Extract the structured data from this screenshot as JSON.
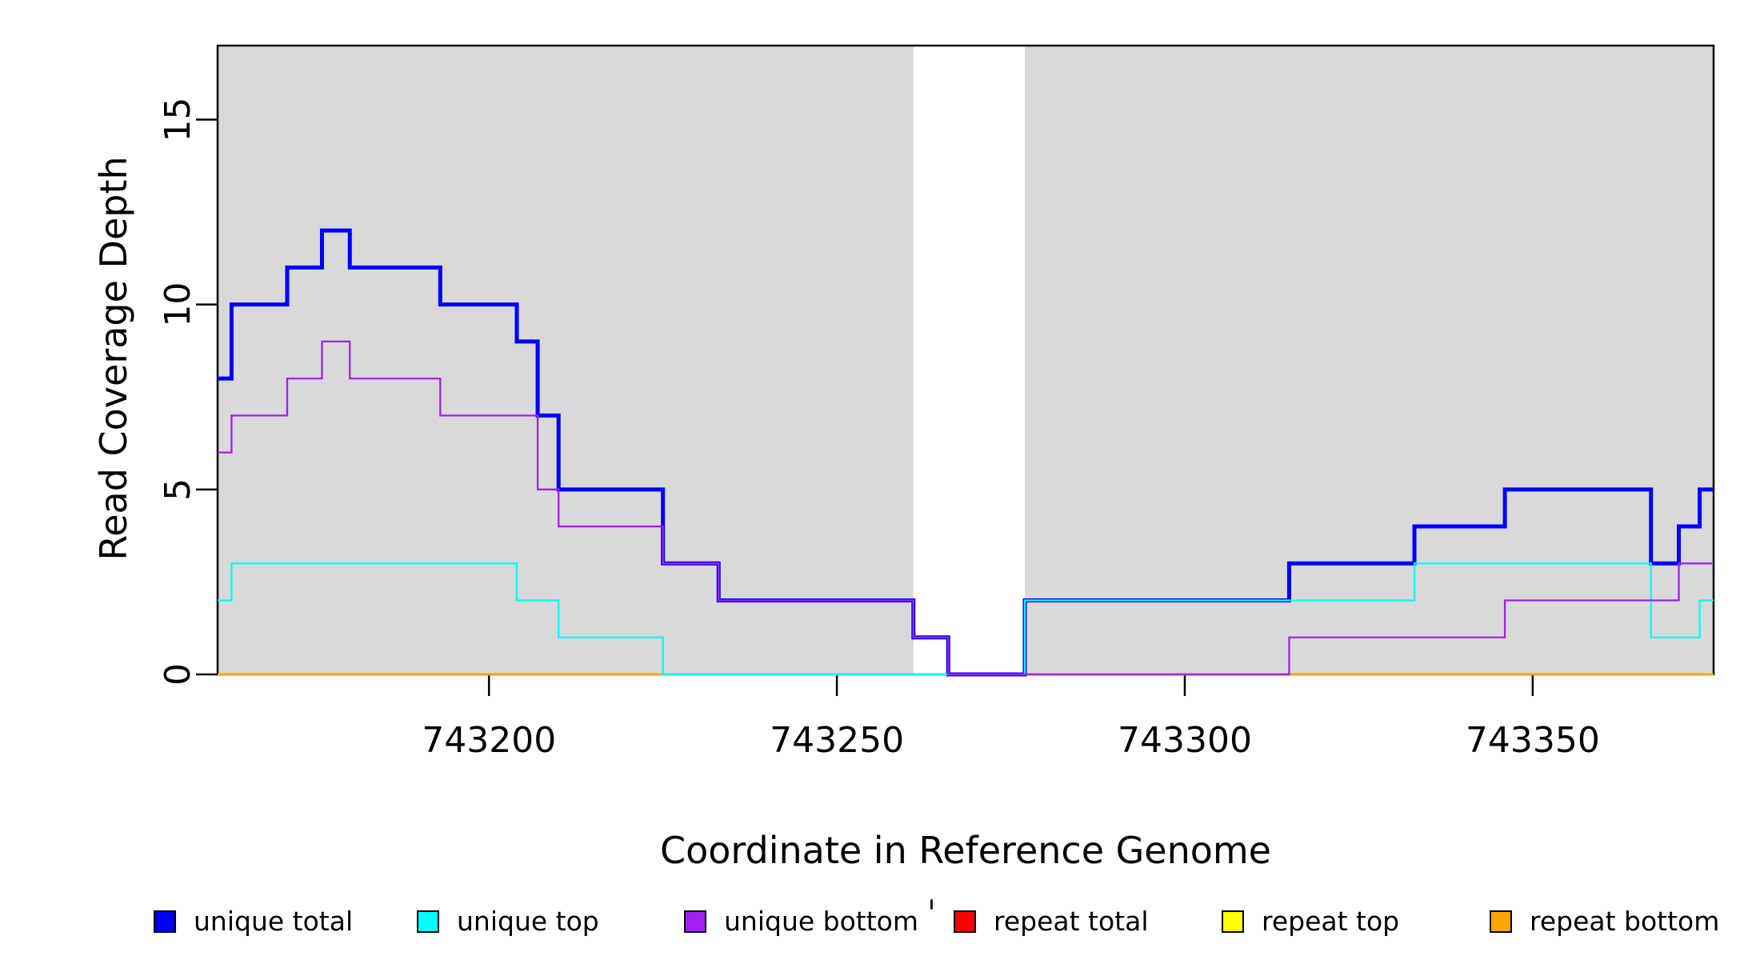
{
  "chart_data": {
    "type": "line",
    "subtype": "step-coverage-plot",
    "title": "",
    "xlabel": "Coordinate in Reference Genome",
    "ylabel": "Read Coverage Depth",
    "xlim": [
      743161,
      743376
    ],
    "ylim": [
      0,
      17
    ],
    "grid": false,
    "background_color": "#FFFFFF",
    "x_ticks": [
      {
        "value": 743200,
        "label": "743200"
      },
      {
        "value": 743250,
        "label": "743250"
      },
      {
        "value": 743300,
        "label": "743300"
      },
      {
        "value": 743350,
        "label": "743350"
      }
    ],
    "y_ticks": [
      {
        "value": 0,
        "label": "0"
      },
      {
        "value": 5,
        "label": "5"
      },
      {
        "value": 10,
        "label": "10"
      },
      {
        "value": 15,
        "label": "15"
      }
    ],
    "shaded_regions": {
      "color": "#D9D9D9",
      "ranges": [
        [
          743161,
          743261
        ],
        [
          743277,
          743376
        ]
      ]
    },
    "x_end": 743376,
    "series": [
      {
        "name": "repeat total",
        "color": "#FF0000",
        "line_width": 2.3,
        "steps": [
          [
            743161,
            0
          ]
        ]
      },
      {
        "name": "repeat top",
        "color": "#FFFF00",
        "line_width": 2.3,
        "steps": [
          [
            743161,
            0
          ]
        ]
      },
      {
        "name": "repeat bottom",
        "color": "#FFA500",
        "line_width": 2.8,
        "steps": [
          [
            743161,
            0
          ]
        ]
      },
      {
        "name": "unique total",
        "color": "#0000FF",
        "line_width": 5,
        "steps": [
          [
            743161,
            8
          ],
          [
            743163,
            10
          ],
          [
            743171,
            11
          ],
          [
            743176,
            12
          ],
          [
            743180,
            11
          ],
          [
            743193,
            10
          ],
          [
            743204,
            9
          ],
          [
            743207,
            7
          ],
          [
            743210,
            5
          ],
          [
            743225,
            3
          ],
          [
            743233,
            2
          ],
          [
            743261,
            1
          ],
          [
            743266,
            0
          ],
          [
            743277,
            2
          ],
          [
            743315,
            3
          ],
          [
            743333,
            4
          ],
          [
            743346,
            5
          ],
          [
            743367,
            3
          ],
          [
            743371,
            4
          ],
          [
            743374,
            5
          ]
        ]
      },
      {
        "name": "unique top",
        "color": "#00FFFF",
        "line_width": 2.3,
        "steps": [
          [
            743161,
            2
          ],
          [
            743163,
            3
          ],
          [
            743204,
            2
          ],
          [
            743210,
            1
          ],
          [
            743225,
            0
          ],
          [
            743277,
            2
          ],
          [
            743333,
            3
          ],
          [
            743367,
            1
          ],
          [
            743374,
            2
          ]
        ]
      },
      {
        "name": "unique bottom",
        "color": "#A020F0",
        "line_width": 2.3,
        "steps": [
          [
            743161,
            6
          ],
          [
            743163,
            7
          ],
          [
            743171,
            8
          ],
          [
            743176,
            9
          ],
          [
            743180,
            8
          ],
          [
            743193,
            7
          ],
          [
            743207,
            5
          ],
          [
            743210,
            4
          ],
          [
            743225,
            3
          ],
          [
            743233,
            2
          ],
          [
            743261,
            1
          ],
          [
            743266,
            0
          ],
          [
            743315,
            1
          ],
          [
            743346,
            2
          ],
          [
            743371,
            3
          ]
        ]
      }
    ],
    "legend": {
      "position": "bottom",
      "items": [
        {
          "label": "unique total",
          "color": "#0000FF"
        },
        {
          "label": "unique top",
          "color": "#00FFFF"
        },
        {
          "label": "unique bottom",
          "color": "#A020F0"
        },
        {
          "label": "repeat total",
          "color": "#FF0000"
        },
        {
          "label": "repeat top",
          "color": "#FFFF00"
        },
        {
          "label": "repeat bottom",
          "color": "#FFA500"
        }
      ]
    }
  }
}
